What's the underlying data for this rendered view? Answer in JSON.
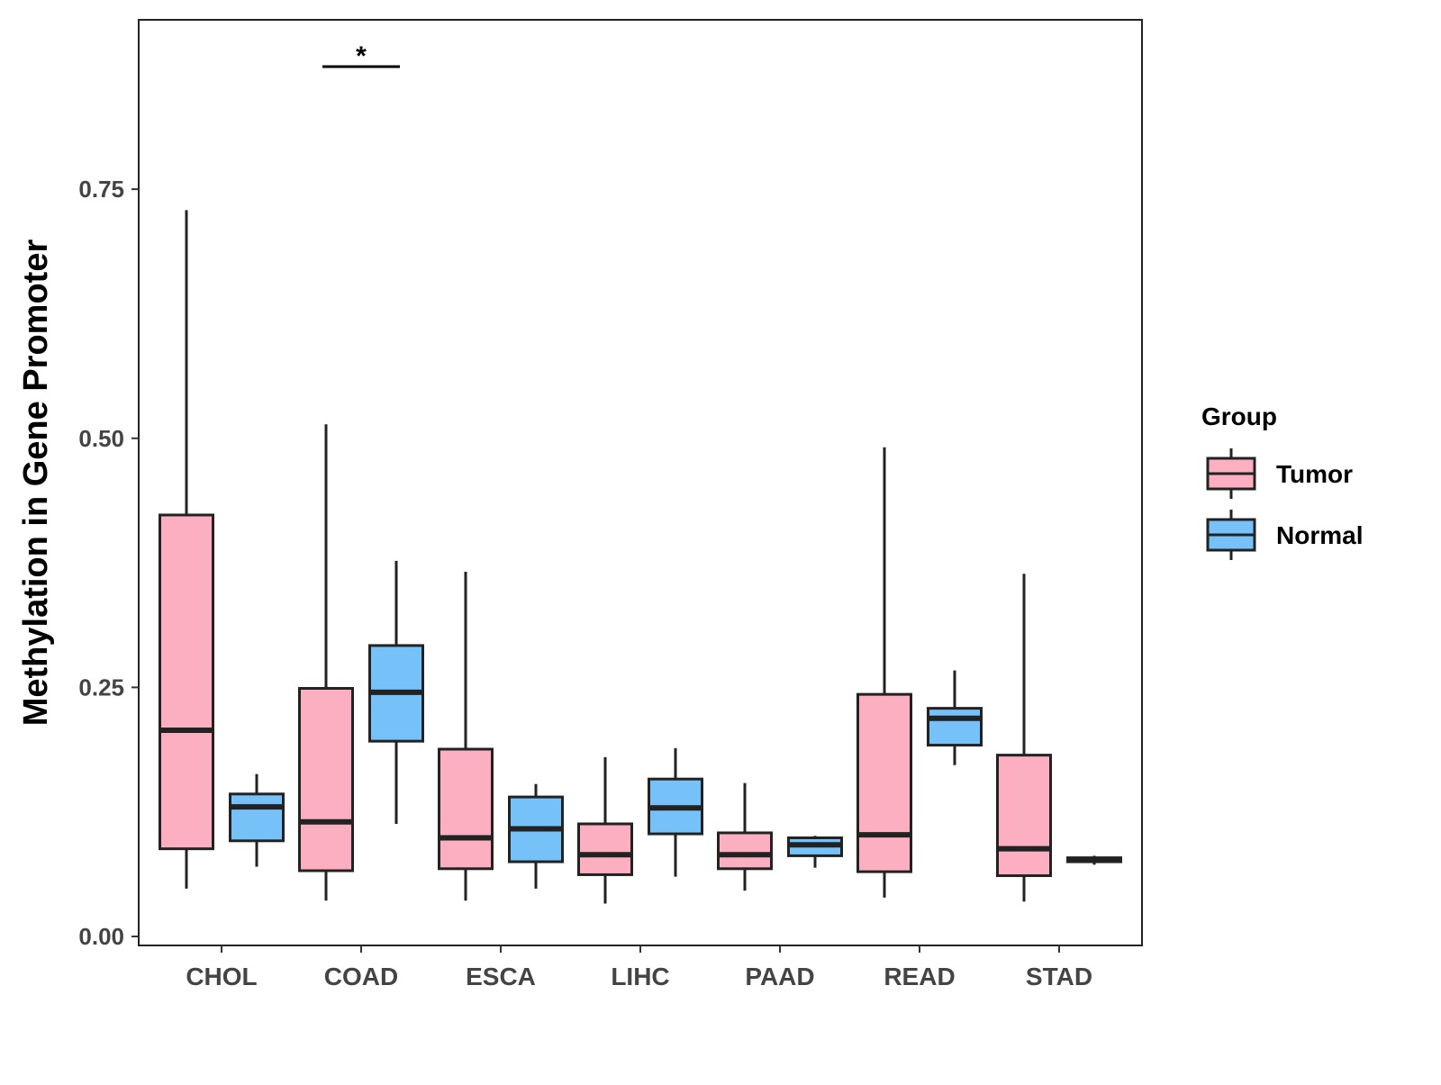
{
  "chart_data": {
    "type": "boxplot",
    "title": "",
    "xlabel": "",
    "ylabel": "Methylation in Gene Promoter",
    "ylim": [
      -0.009,
      0.92
    ],
    "yticks": [
      0,
      0.25,
      0.5,
      0.75
    ],
    "ytick_labels": [
      "0.00",
      "0.25",
      "0.50",
      "0.75"
    ],
    "categories": [
      "CHOL",
      "COAD",
      "ESCA",
      "LIHC",
      "PAAD",
      "READ",
      "STAD"
    ],
    "legend": {
      "title": "Group",
      "placement": "right",
      "entries": [
        {
          "name": "Tumor",
          "color": "#FBAFC1"
        },
        {
          "name": "Normal",
          "color": "#76C1F8"
        }
      ]
    },
    "series": [
      {
        "name": "Tumor",
        "color": "#FBAFC1",
        "boxes": [
          {
            "min": 0.048,
            "q1": 0.088,
            "median": 0.207,
            "q3": 0.423,
            "max": 0.729
          },
          {
            "min": 0.036,
            "q1": 0.066,
            "median": 0.115,
            "q3": 0.249,
            "max": 0.514
          },
          {
            "min": 0.036,
            "q1": 0.068,
            "median": 0.099,
            "q3": 0.188,
            "max": 0.366
          },
          {
            "min": 0.033,
            "q1": 0.062,
            "median": 0.082,
            "q3": 0.113,
            "max": 0.18
          },
          {
            "min": 0.046,
            "q1": 0.068,
            "median": 0.082,
            "q3": 0.104,
            "max": 0.154
          },
          {
            "min": 0.039,
            "q1": 0.065,
            "median": 0.102,
            "q3": 0.243,
            "max": 0.491
          },
          {
            "min": 0.035,
            "q1": 0.061,
            "median": 0.088,
            "q3": 0.182,
            "max": 0.364
          }
        ]
      },
      {
        "name": "Normal",
        "color": "#76C1F8",
        "boxes": [
          {
            "min": 0.07,
            "q1": 0.096,
            "median": 0.13,
            "q3": 0.143,
            "max": 0.163
          },
          {
            "min": 0.113,
            "q1": 0.196,
            "median": 0.245,
            "q3": 0.292,
            "max": 0.377
          },
          {
            "min": 0.048,
            "q1": 0.075,
            "median": 0.108,
            "q3": 0.14,
            "max": 0.153
          },
          {
            "min": 0.06,
            "q1": 0.103,
            "median": 0.129,
            "q3": 0.158,
            "max": 0.189
          },
          {
            "min": 0.069,
            "q1": 0.081,
            "median": 0.092,
            "q3": 0.099,
            "max": 0.101
          },
          {
            "min": 0.172,
            "q1": 0.192,
            "median": 0.219,
            "q3": 0.229,
            "max": 0.267
          },
          {
            "min": 0.072,
            "q1": 0.075,
            "median": 0.077,
            "q3": 0.079,
            "max": 0.081
          }
        ]
      }
    ],
    "annotations": [
      {
        "category": "COAD",
        "text": "*",
        "y": 0.873
      }
    ]
  }
}
